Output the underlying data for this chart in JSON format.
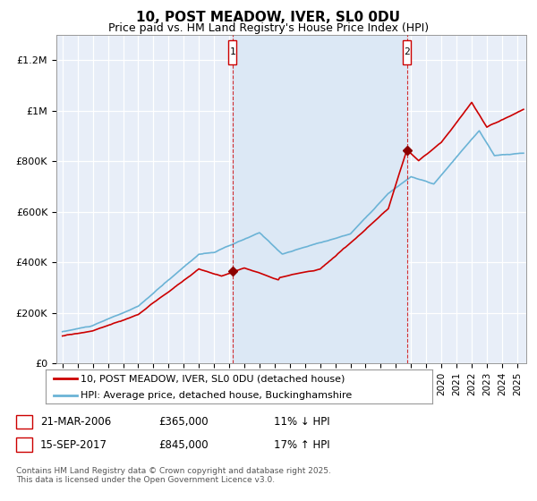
{
  "title": "10, POST MEADOW, IVER, SL0 0DU",
  "subtitle": "Price paid vs. HM Land Registry's House Price Index (HPI)",
  "ylim": [
    0,
    1300000
  ],
  "yticks": [
    0,
    200000,
    400000,
    600000,
    800000,
    1000000,
    1200000
  ],
  "ytick_labels": [
    "£0",
    "£200K",
    "£400K",
    "£600K",
    "£800K",
    "£1M",
    "£1.2M"
  ],
  "xlim_start": 1994.6,
  "xlim_end": 2025.6,
  "background_color": "#ffffff",
  "plot_bg_color": "#e8eef8",
  "grid_color": "#ffffff",
  "hpi_color": "#6bb3d6",
  "price_color": "#cc0000",
  "shade_color": "#dce8f5",
  "sale1_x": 2006.22,
  "sale1_y": 365000,
  "sale2_x": 2017.72,
  "sale2_y": 845000,
  "legend_line1": "10, POST MEADOW, IVER, SL0 0DU (detached house)",
  "legend_line2": "HPI: Average price, detached house, Buckinghamshire",
  "table_row1": [
    "1",
    "21-MAR-2006",
    "£365,000",
    "11% ↓ HPI"
  ],
  "table_row2": [
    "2",
    "15-SEP-2017",
    "£845,000",
    "17% ↑ HPI"
  ],
  "footnote": "Contains HM Land Registry data © Crown copyright and database right 2025.\nThis data is licensed under the Open Government Licence v3.0.",
  "title_fontsize": 11,
  "subtitle_fontsize": 9
}
